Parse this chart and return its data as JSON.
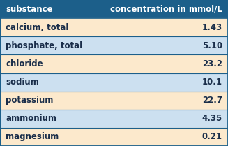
{
  "title_row": [
    "substance",
    "concentration in mmol/L"
  ],
  "rows": [
    [
      "calcium, total",
      "1.43"
    ],
    [
      "phosphate, total",
      "5.10"
    ],
    [
      "chloride",
      "23.2"
    ],
    [
      "sodium",
      "10.1"
    ],
    [
      "potassium",
      "22.7"
    ],
    [
      "ammonium",
      "4.35"
    ],
    [
      "magnesium",
      "0.21"
    ]
  ],
  "header_bg": "#1c5f8a",
  "row_bg_odd": "#fce9cc",
  "row_bg_even": "#cce0f0",
  "header_text_color": "#ffffff",
  "row_text_color": "#1a2e4a",
  "header_fontsize": 8.5,
  "row_fontsize": 8.5,
  "border_color": "#1c5f8a",
  "fig_width": 3.27,
  "fig_height": 2.09,
  "dpi": 100
}
